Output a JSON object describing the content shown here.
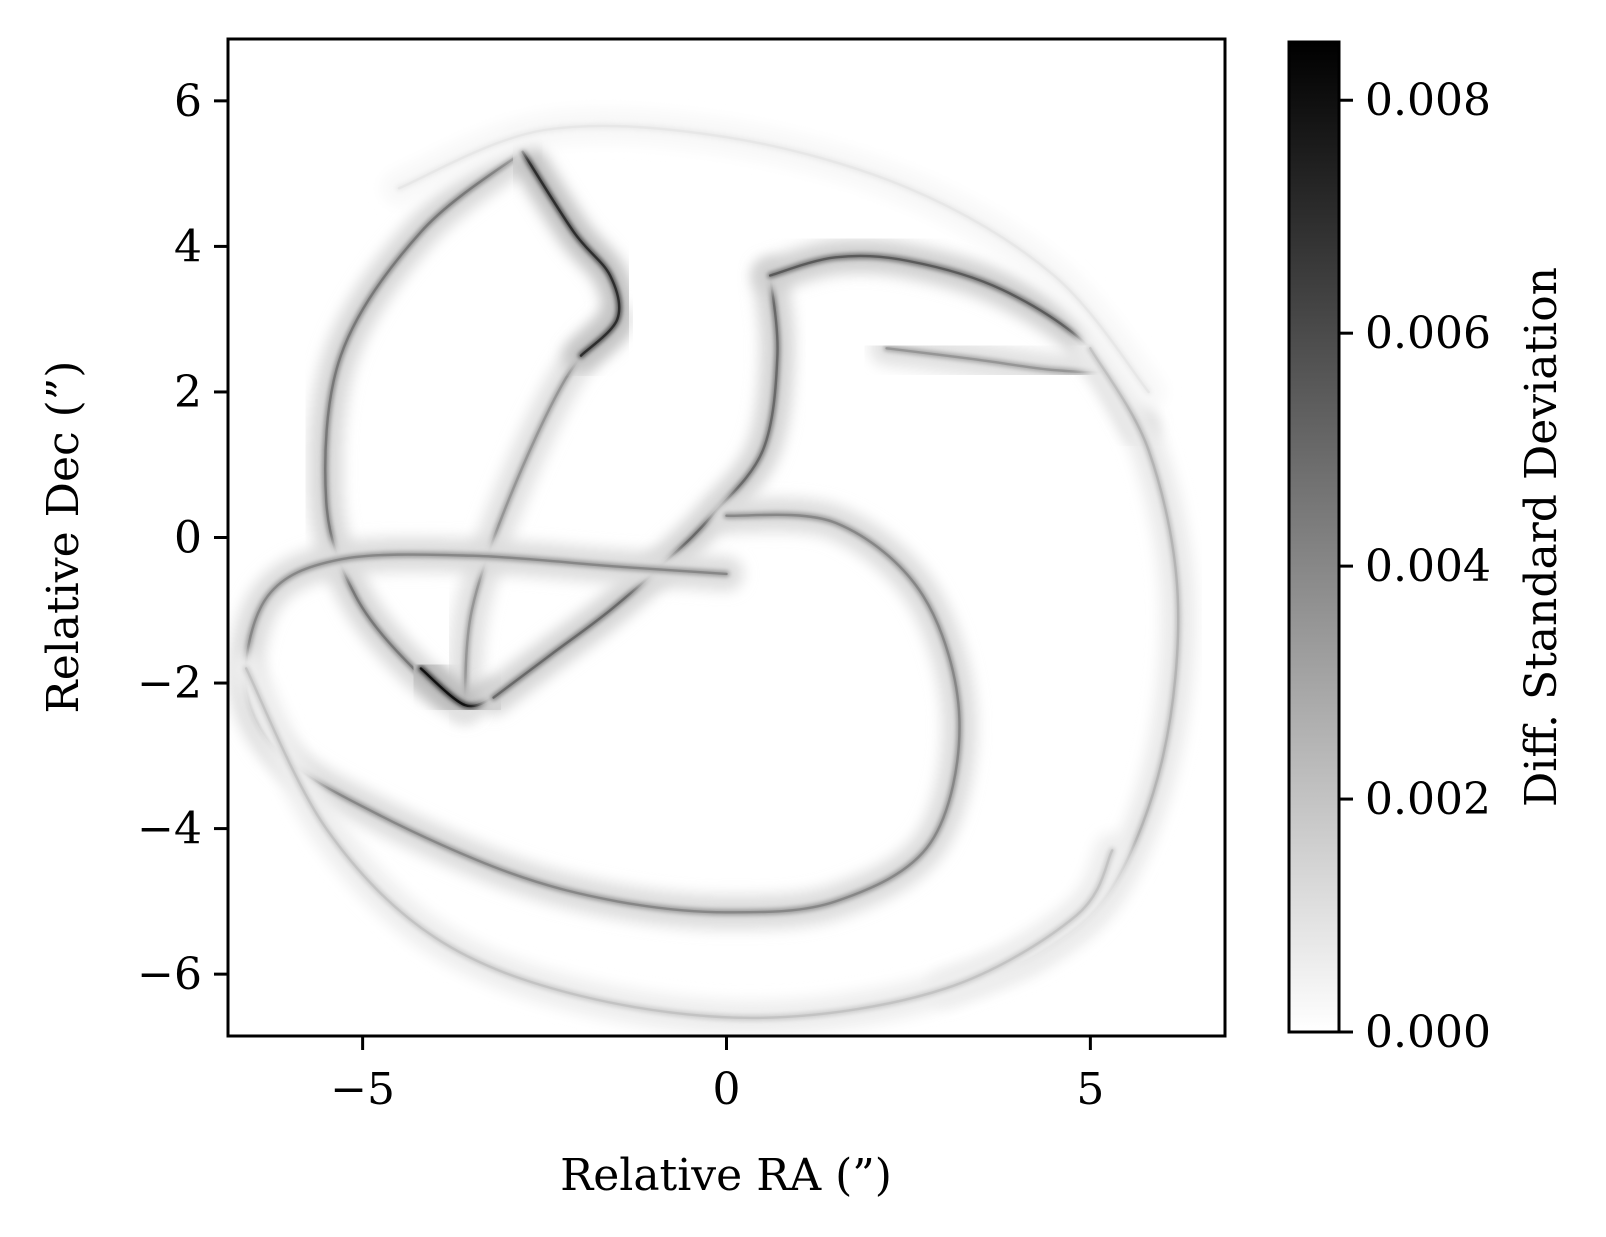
{
  "chart_data": {
    "type": "heatmap",
    "xlabel": "Relative RA (”)",
    "ylabel": "Relative Dec (”)",
    "xlim": [
      -6.85,
      6.85
    ],
    "ylim": [
      -6.85,
      6.85
    ],
    "xticks": [
      {
        "value": -5,
        "label": "−5"
      },
      {
        "value": 0,
        "label": "0"
      },
      {
        "value": 5,
        "label": "5"
      }
    ],
    "yticks": [
      {
        "value": 6,
        "label": "6"
      },
      {
        "value": 4,
        "label": "4"
      },
      {
        "value": 2,
        "label": "2"
      },
      {
        "value": 0,
        "label": "0"
      },
      {
        "value": -2,
        "label": "−2"
      },
      {
        "value": -4,
        "label": "−4"
      },
      {
        "value": -6,
        "label": "−6"
      }
    ],
    "grid": false,
    "colorbar": {
      "label": "Diff. Standard Deviation",
      "range": [
        0.0,
        0.0085
      ],
      "colormap": "Greys",
      "low_color": "#ffffff",
      "high_color": "#000000",
      "ticks": [
        {
          "value": 0.0,
          "label": "0.000"
        },
        {
          "value": 0.002,
          "label": "0.002"
        },
        {
          "value": 0.004,
          "label": "0.004"
        },
        {
          "value": 0.006,
          "label": "0.006"
        },
        {
          "value": 0.008,
          "label": "0.008"
        }
      ]
    },
    "features": [
      {
        "name": "outer-ring-left",
        "points": [
          [
            -2.8,
            5.3
          ],
          [
            -4.2,
            4.2
          ],
          [
            -5.3,
            2.5
          ],
          [
            -5.5,
            0.5
          ],
          [
            -5.1,
            -0.8
          ],
          [
            -4.3,
            -1.8
          ],
          [
            -3.6,
            -2.3
          ]
        ],
        "value": 0.0045
      },
      {
        "name": "inner-left-arc",
        "points": [
          [
            -1.5,
            3.0
          ],
          [
            -2.2,
            2.2
          ],
          [
            -3.0,
            0.5
          ],
          [
            -3.5,
            -1.0
          ],
          [
            -3.6,
            -2.3
          ]
        ],
        "value": 0.0035
      },
      {
        "name": "lower-left-crest",
        "points": [
          [
            -4.2,
            -1.8
          ],
          [
            -3.6,
            -2.3
          ],
          [
            -3.2,
            -2.2
          ]
        ],
        "value": 0.008
      },
      {
        "name": "upper-left-crest",
        "points": [
          [
            -2.8,
            5.3
          ],
          [
            -2.1,
            4.2
          ],
          [
            -1.6,
            3.6
          ],
          [
            -1.5,
            3.0
          ],
          [
            -2.0,
            2.5
          ]
        ],
        "value": 0.007
      },
      {
        "name": "central-diagonal",
        "points": [
          [
            -3.2,
            -2.2
          ],
          [
            -2.4,
            -1.6
          ],
          [
            -1.6,
            -1.0
          ],
          [
            -0.8,
            -0.3
          ],
          [
            -0.2,
            0.3
          ],
          [
            0.5,
            1.2
          ],
          [
            0.7,
            2.5
          ],
          [
            0.6,
            3.6
          ]
        ],
        "value": 0.005
      },
      {
        "name": "top-right-arc",
        "points": [
          [
            0.6,
            3.6
          ],
          [
            1.5,
            3.85
          ],
          [
            2.5,
            3.8
          ],
          [
            3.8,
            3.4
          ],
          [
            5.0,
            2.6
          ],
          [
            5.7,
            1.5
          ]
        ],
        "value": 0.0055
      },
      {
        "name": "right-inner-arm",
        "points": [
          [
            2.2,
            2.6
          ],
          [
            3.4,
            2.45
          ],
          [
            4.5,
            2.3
          ],
          [
            5.2,
            2.3
          ],
          [
            5.0,
            2.6
          ]
        ],
        "value": 0.0035
      },
      {
        "name": "right-outer-arc",
        "points": [
          [
            5.0,
            2.6
          ],
          [
            5.8,
            1.2
          ],
          [
            6.2,
            -0.8
          ],
          [
            6.0,
            -3.0
          ],
          [
            5.3,
            -4.8
          ],
          [
            4.3,
            -5.7
          ],
          [
            3.0,
            -6.2
          ]
        ],
        "value": 0.0025
      },
      {
        "name": "central-spiral",
        "points": [
          [
            0.0,
            0.3
          ],
          [
            1.5,
            0.2
          ],
          [
            2.7,
            -0.8
          ],
          [
            3.2,
            -2.5
          ],
          [
            2.8,
            -4.2
          ],
          [
            1.5,
            -5.0
          ],
          [
            0.0,
            -5.15
          ],
          [
            -1.5,
            -5.0
          ],
          [
            -3.0,
            -4.6
          ],
          [
            -4.8,
            -3.8
          ],
          [
            -6.1,
            -3.0
          ],
          [
            -6.6,
            -2.0
          ],
          [
            -6.3,
            -0.8
          ],
          [
            -5.3,
            -0.3
          ],
          [
            -3.5,
            -0.25
          ],
          [
            -1.5,
            -0.4
          ],
          [
            0.0,
            -0.5
          ]
        ],
        "value": 0.004
      },
      {
        "name": "bottom-outer-arc",
        "points": [
          [
            -6.6,
            -1.8
          ],
          [
            -5.5,
            -4.0
          ],
          [
            -4.0,
            -5.5
          ],
          [
            -2.0,
            -6.3
          ],
          [
            0.5,
            -6.6
          ],
          [
            3.0,
            -6.2
          ],
          [
            4.8,
            -5.2
          ],
          [
            5.3,
            -4.3
          ]
        ],
        "value": 0.002
      },
      {
        "name": "top-outer-halo",
        "points": [
          [
            -4.5,
            4.8
          ],
          [
            -2.5,
            5.6
          ],
          [
            0.0,
            5.5
          ],
          [
            2.5,
            4.8
          ],
          [
            4.5,
            3.6
          ],
          [
            5.8,
            2.0
          ]
        ],
        "value": 0.0008
      }
    ]
  }
}
